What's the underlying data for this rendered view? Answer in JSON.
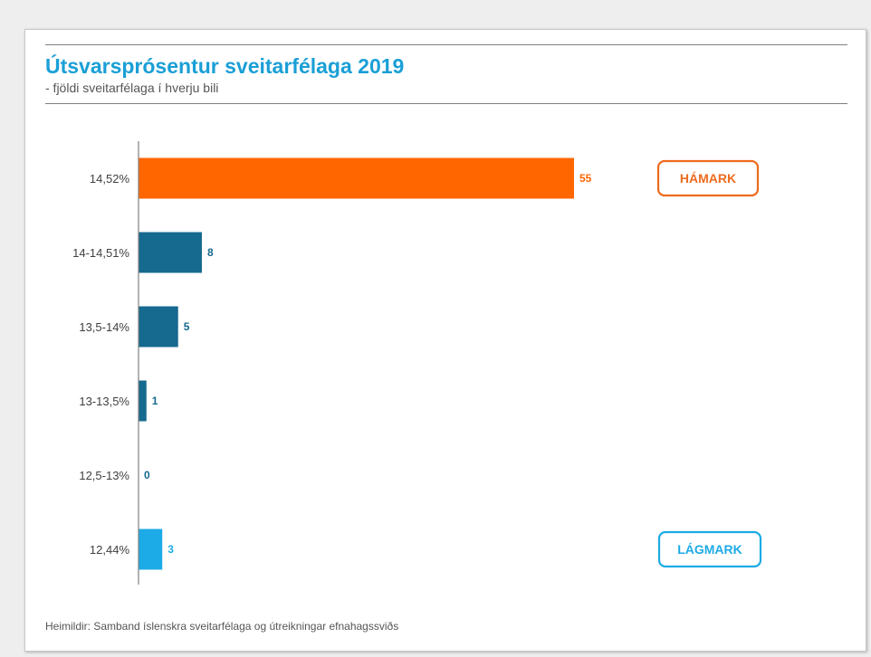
{
  "title": "Útsvarsprósentur sveitarfélaga 2019",
  "subtitle": "- fjöldi sveitarfélaga í hverju bili",
  "source": "Heimildir: Samband íslenskra sveitarfélaga og útreikningar efnahagssviðs",
  "colors": {
    "title": "#1a9fd6",
    "bar_max": "#ff6600",
    "bar_mid": "#16698f",
    "bar_min": "#1cabe6"
  },
  "chart_data": {
    "type": "bar",
    "orientation": "horizontal",
    "categories": [
      "14,52%",
      "14-14,51%",
      "13,5-14%",
      "13-13,5%",
      "12,5-13%",
      "12,44%"
    ],
    "values": [
      55,
      8,
      5,
      1,
      0,
      3
    ],
    "xlim": [
      0,
      55
    ],
    "grid": false,
    "annotations": [
      {
        "text": "HÁMARK",
        "category": "14,52%",
        "color": "#ed6b1f"
      },
      {
        "text": "LÁGMARK",
        "category": "12,44%",
        "color": "#1cabe6"
      }
    ]
  }
}
